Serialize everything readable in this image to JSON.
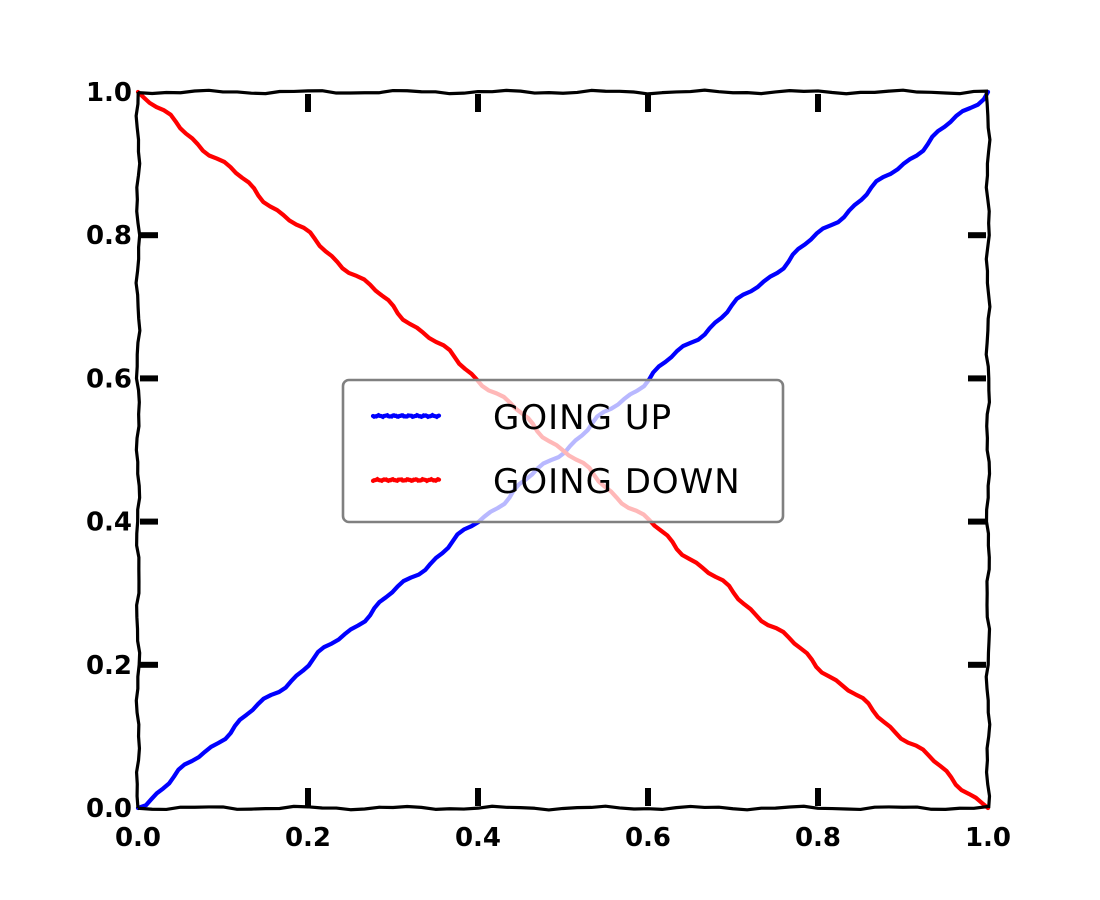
{
  "chart_data": {
    "type": "line",
    "title": "",
    "xlabel": "",
    "ylabel": "",
    "xlim": [
      0.0,
      1.0
    ],
    "ylim": [
      0.0,
      1.0
    ],
    "x_ticks": [
      "0.0",
      "0.2",
      "0.4",
      "0.6",
      "0.8",
      "1.0"
    ],
    "y_ticks": [
      "0.0",
      "0.2",
      "0.4",
      "0.6",
      "0.8",
      "1.0"
    ],
    "grid": false,
    "style": "xkcd",
    "legend": {
      "placement": "center",
      "entries": [
        "GOING UP",
        "GOING DOWN"
      ]
    },
    "series": [
      {
        "name": "GOING UP",
        "color": "#0000ff",
        "x": [
          0.0,
          0.1,
          0.2,
          0.3,
          0.4,
          0.5,
          0.6,
          0.7,
          0.8,
          0.9,
          1.0
        ],
        "y": [
          0.0,
          0.1,
          0.2,
          0.3,
          0.4,
          0.5,
          0.6,
          0.7,
          0.8,
          0.9,
          1.0
        ]
      },
      {
        "name": "GOING DOWN",
        "color": "#ff0000",
        "x": [
          0.0,
          0.1,
          0.2,
          0.3,
          0.4,
          0.5,
          0.6,
          0.7,
          0.8,
          0.9,
          1.0
        ],
        "y": [
          1.0,
          0.9,
          0.8,
          0.7,
          0.6,
          0.5,
          0.4,
          0.3,
          0.2,
          0.1,
          0.0
        ]
      }
    ]
  }
}
